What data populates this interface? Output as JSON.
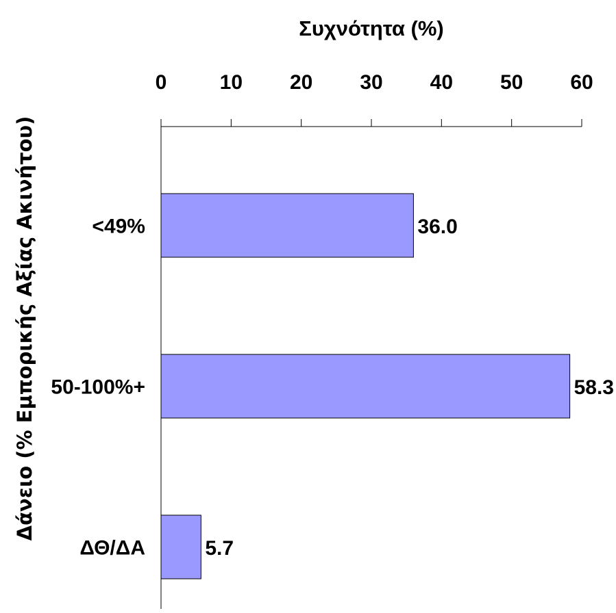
{
  "chart_data": {
    "type": "bar",
    "orientation": "horizontal",
    "xlabel": "Συχνότητα (%)",
    "ylabel": "Δάνειο (% Εμπορικής Αξίας Ακινήτου)",
    "xlim": [
      0,
      60
    ],
    "xticks": [
      "0",
      "10",
      "20",
      "30",
      "40",
      "50",
      "60"
    ],
    "xaxis_position": "top",
    "grid": false,
    "legend": "none",
    "categories": [
      "<49%",
      "50-100%+",
      "ΔΘ/ΔΑ"
    ],
    "values": [
      36.0,
      58.3,
      5.7
    ],
    "data_labels": [
      "36.0",
      "58.3",
      "5.7"
    ],
    "bar_color": "#9999ff",
    "bar_edge_color": "#000000"
  }
}
